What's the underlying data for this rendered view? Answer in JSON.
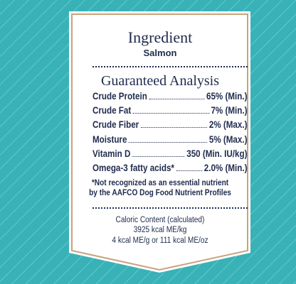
{
  "title": "Ingredient",
  "ingredient": "Salmon",
  "section_title": "Guaranteed Analysis",
  "rows": [
    {
      "label": "Crude Protein",
      "value": "65% (Min.)"
    },
    {
      "label": "Crude Fat",
      "value": "7% (Min.)"
    },
    {
      "label": "Crude Fiber",
      "value": "2% (Max.)"
    },
    {
      "label": "Moisture",
      "value": "5% (Max.)"
    },
    {
      "label": "Vitamin D",
      "value": "350 (Min. IU/kg)"
    },
    {
      "label": "Omega-3 fatty acids*",
      "value": "2.0% (Min.)"
    }
  ],
  "note": [
    "*Not recognized as an essential nutrient",
    "by the AAFCO Dog Food Nutrient Profiles"
  ],
  "caloric": [
    "Caloric Content (calculated)",
    "3925 kcal ME/kg",
    "4 kcal ME/g or 111 kcal ME/oz"
  ]
}
